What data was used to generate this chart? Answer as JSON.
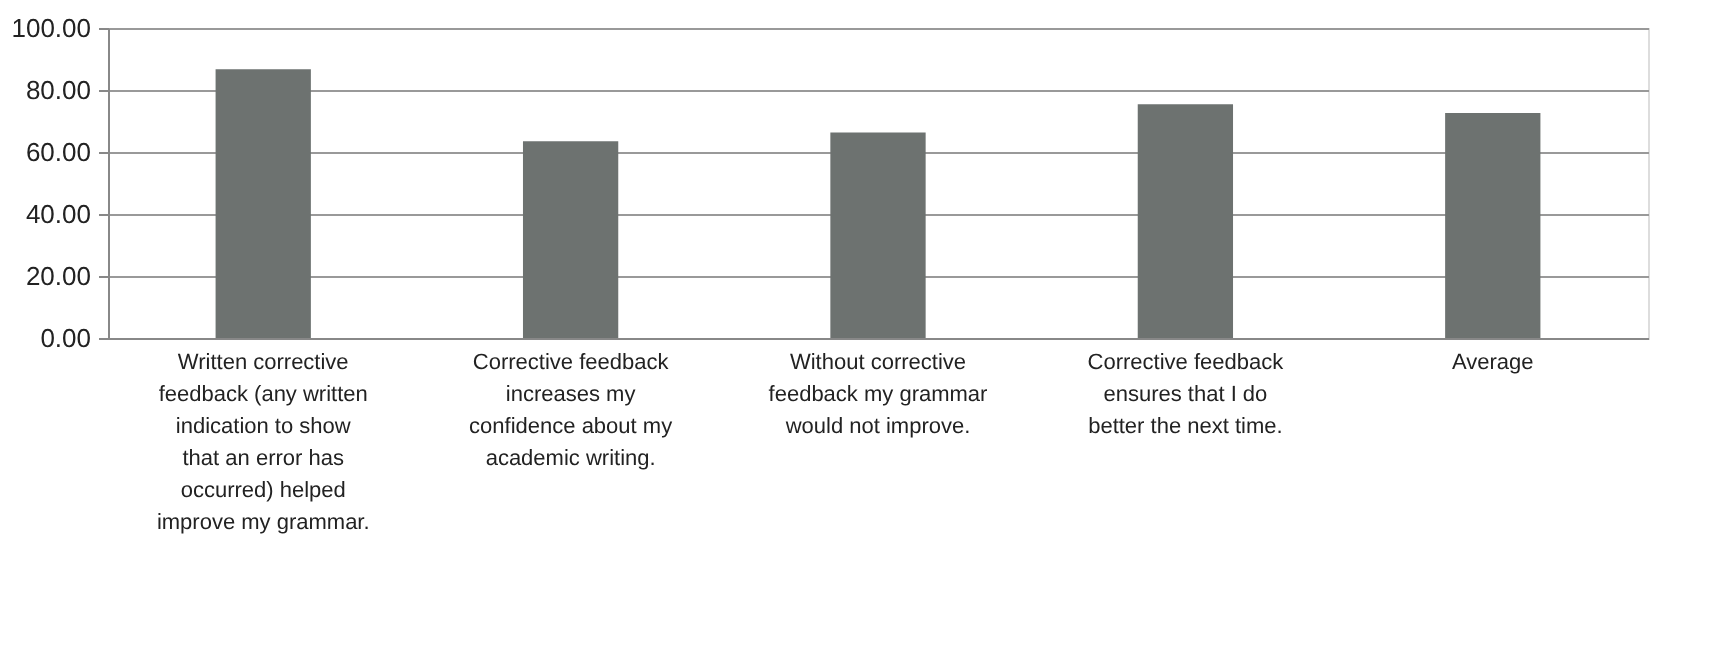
{
  "chart_data": {
    "type": "bar",
    "categories": [
      "Written corrective feedback (any written indication to show that an error has occurred) helped improve my grammar.",
      "Corrective feedback increases my confidence about my academic writing.",
      "Without corrective feedback my grammar would not improve.",
      "Corrective feedback ensures that I do better the next time.",
      "Average"
    ],
    "values": [
      86.7,
      63.5,
      66.3,
      75.4,
      72.6
    ],
    "color": "#6d7270",
    "ylim": [
      0,
      100
    ],
    "yticks": [
      {
        "value": 0,
        "label": "0.00"
      },
      {
        "value": 20,
        "label": "20.00"
      },
      {
        "value": 40,
        "label": "40.00"
      },
      {
        "value": 60,
        "label": "60.00"
      },
      {
        "value": 80,
        "label": "80.00"
      },
      {
        "value": 100,
        "label": "100.00"
      }
    ],
    "grid": "y"
  }
}
